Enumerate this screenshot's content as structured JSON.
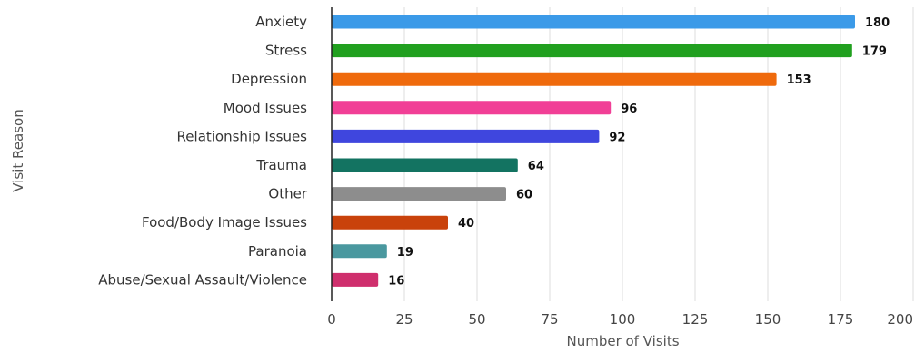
{
  "chart_data": {
    "type": "bar",
    "orientation": "horizontal",
    "xlabel": "Number of Visits",
    "ylabel": "Visit Reason",
    "xlim": [
      0,
      200
    ],
    "xticks": [
      0,
      25,
      50,
      75,
      100,
      125,
      150,
      175,
      200
    ],
    "grid": true,
    "categories": [
      "Anxiety",
      "Stress",
      "Depression",
      "Mood Issues",
      "Relationship Issues",
      "Trauma",
      "Other",
      "Food/Body Image Issues",
      "Paranoia",
      "Abuse/Sexual Assault/Violence"
    ],
    "values": [
      180,
      179,
      153,
      96,
      92,
      64,
      60,
      40,
      19,
      16
    ],
    "colors": [
      "#3b9ae8",
      "#21a01f",
      "#ef6a0c",
      "#f13f96",
      "#3f46de",
      "#137361",
      "#8d8d8d",
      "#c9420b",
      "#4a989f",
      "#cf2f6d"
    ]
  }
}
